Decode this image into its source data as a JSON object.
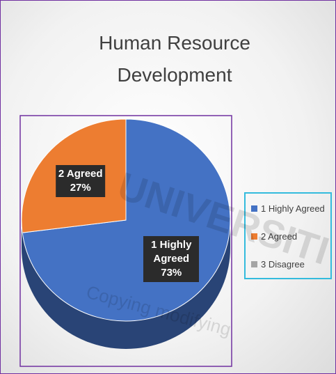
{
  "chart_data": {
    "type": "pie",
    "title": "Human Resource Development",
    "categories": [
      "1 Highly Agreed",
      "2 Agreed",
      "3 Disagree"
    ],
    "values": [
      73,
      27,
      0
    ],
    "value_labels": [
      "73%",
      "27%",
      null
    ],
    "colors": [
      "#4472c4",
      "#ed7d31",
      "#a5a5a5"
    ],
    "legend": "right"
  },
  "watermark": [
    "UNIVERSITI TUN",
    "Copying modifying"
  ]
}
